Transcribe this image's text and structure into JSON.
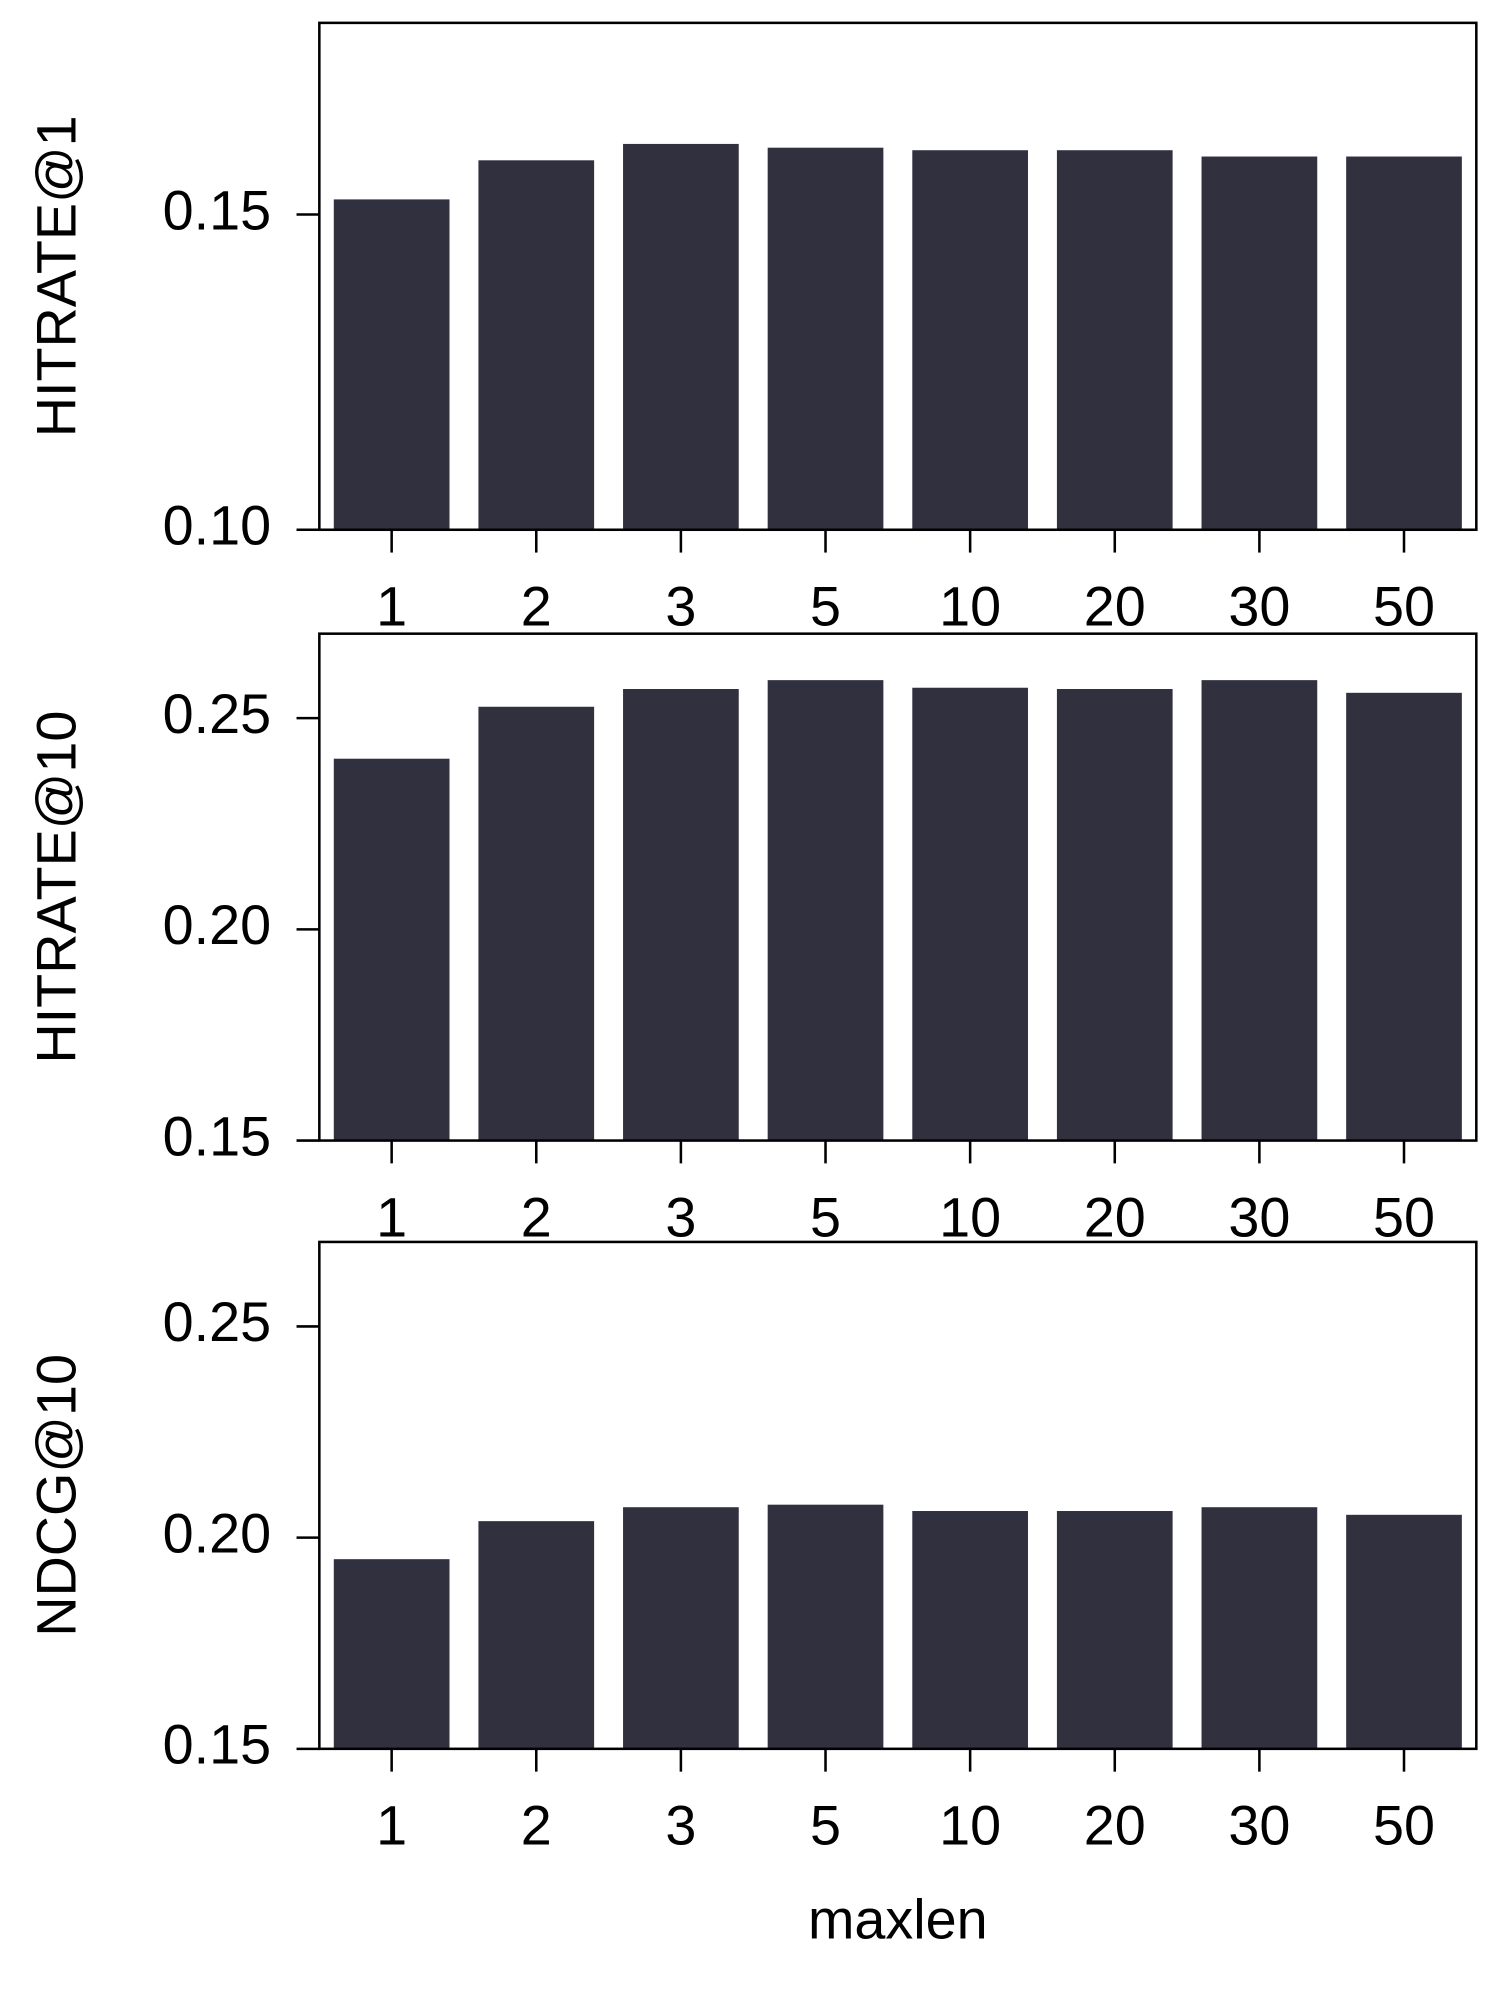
{
  "chart_data": [
    {
      "type": "bar",
      "ylabel": "HITRATE@1",
      "categories": [
        "1",
        "2",
        "3",
        "5",
        "10",
        "20",
        "30",
        "50"
      ],
      "values": [
        0.1524,
        0.1586,
        0.1612,
        0.1606,
        0.1602,
        0.1602,
        0.1592,
        0.1592
      ],
      "color": "#31303f",
      "ylim": [
        0.1,
        0.1804
      ],
      "yticks": [
        {
          "value": 0.1,
          "label": "0.10"
        },
        {
          "value": 0.15,
          "label": "0.15"
        }
      ]
    },
    {
      "type": "bar",
      "ylabel": "HITRATE@10",
      "categories": [
        "1",
        "2",
        "3",
        "5",
        "10",
        "20",
        "30",
        "50"
      ],
      "values": [
        0.2404,
        0.2527,
        0.2569,
        0.259,
        0.2572,
        0.2569,
        0.259,
        0.256
      ],
      "color": "#31303f",
      "ylim": [
        0.15,
        0.27
      ],
      "yticks": [
        {
          "value": 0.15,
          "label": "0.15"
        },
        {
          "value": 0.2,
          "label": "0.20"
        },
        {
          "value": 0.25,
          "label": "0.25"
        }
      ]
    },
    {
      "type": "bar",
      "ylabel": "NDCG@10",
      "xlabel": "maxlen",
      "categories": [
        "1",
        "2",
        "3",
        "5",
        "10",
        "20",
        "30",
        "50"
      ],
      "values": [
        0.1949,
        0.2039,
        0.2072,
        0.2078,
        0.2063,
        0.2063,
        0.2072,
        0.2054
      ],
      "color": "#31303f",
      "ylim": [
        0.15,
        0.27
      ],
      "yticks": [
        {
          "value": 0.15,
          "label": "0.15"
        },
        {
          "value": 0.2,
          "label": "0.20"
        },
        {
          "value": 0.25,
          "label": "0.25"
        }
      ]
    }
  ]
}
